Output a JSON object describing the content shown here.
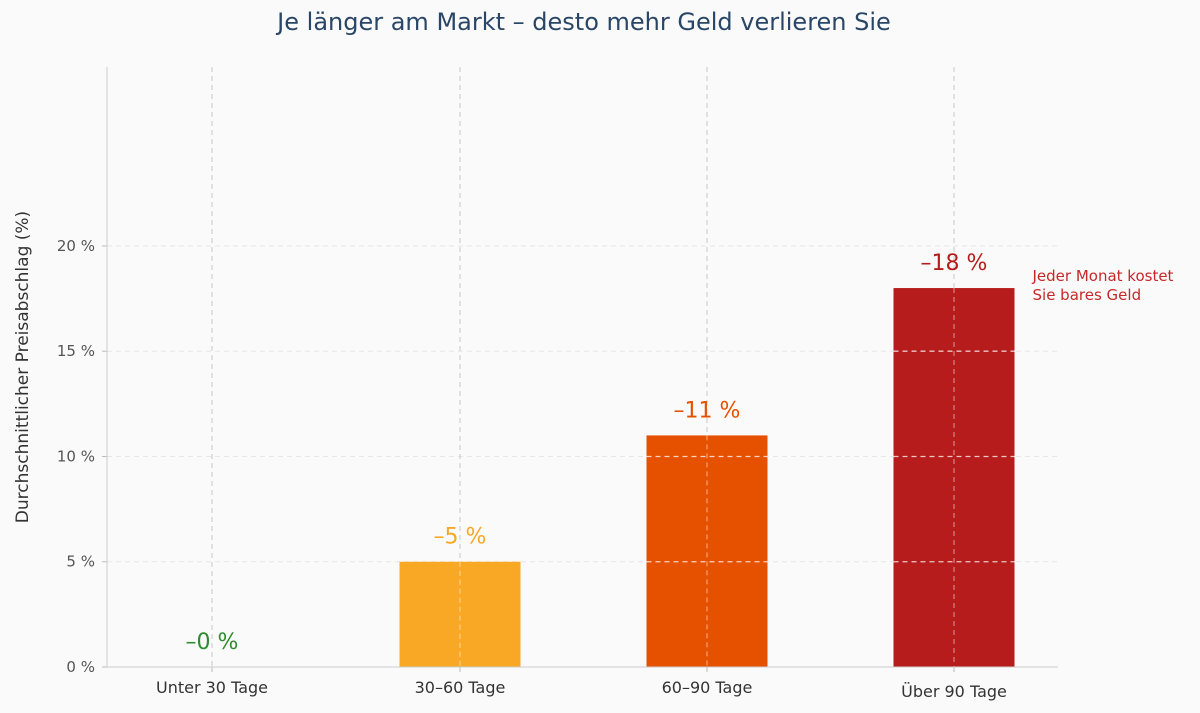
{
  "chart_data": {
    "type": "bar",
    "title": "Je länger am Markt – desto mehr Geld verlieren Sie",
    "xlabel": "",
    "ylabel": "Durchschnittlicher Preisabschlag (%)",
    "categories": [
      "Unter 30 Tage",
      "30–60 Tage",
      "60–90 Tage",
      "Über 90 Tage"
    ],
    "values": [
      0,
      5,
      11,
      18
    ],
    "value_labels": [
      "–0 %",
      "–5 %",
      "–11 %",
      "–18 %"
    ],
    "colors": [
      "#2e8b2e",
      "#f9a825",
      "#e65100",
      "#b71c1c"
    ],
    "ylim": [
      0,
      28.5
    ],
    "yticks": [
      0,
      5,
      10,
      15,
      20
    ],
    "ytick_labels": [
      "0 %",
      "5 %",
      "10 %",
      "15 %",
      "20 %"
    ],
    "grid": true,
    "annotation": {
      "lines": [
        "Jeder Monat kostet",
        "Sie bares Geld"
      ],
      "color": "#c62828",
      "target_category": "Über 90 Tage"
    }
  }
}
